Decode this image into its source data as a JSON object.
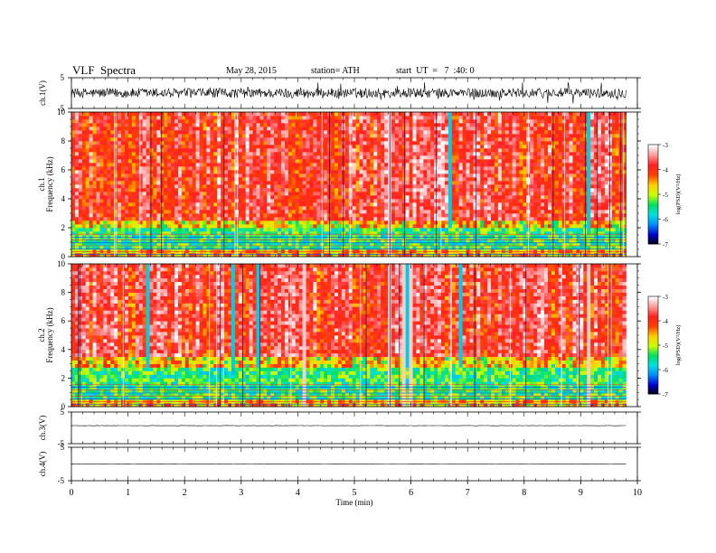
{
  "header": {
    "title": "VLF  Spectra",
    "date": "May 28, 2015",
    "station": "station= ATH",
    "start": "start  UT  =   7  :40: 0"
  },
  "chart_data": {
    "type": "heatmap",
    "xlabel": "Time  (min)",
    "xlim": [
      0,
      10
    ],
    "x_ticks": [
      "0",
      "1",
      "2",
      "3",
      "4",
      "5",
      "6",
      "7",
      "8",
      "9",
      "10"
    ],
    "data_end_min": 9.8,
    "panels": [
      {
        "id": "ch1-waveform",
        "type": "line",
        "ylabel": "ch.1(V)",
        "ylim": [
          -5,
          5
        ],
        "y_ticks": [
          "5",
          "-5"
        ],
        "amplitude": 1.6
      },
      {
        "id": "ch1-spectrogram",
        "type": "heatmap",
        "ylabel_top": "ch.1",
        "ylabel": "Frequency  (kHz)",
        "ylim": [
          0,
          10
        ],
        "y_ticks": [
          "0",
          "2",
          "4",
          "6",
          "8",
          "10"
        ],
        "noise_floor_kHz": 2.0
      },
      {
        "id": "ch2-spectrogram",
        "type": "heatmap",
        "ylabel_top": "ch.2",
        "ylabel": "Frequency  (kHz)",
        "ylim": [
          0,
          10
        ],
        "y_ticks": [
          "0",
          "2",
          "4",
          "6",
          "8",
          "10"
        ],
        "noise_floor_kHz": 2.8
      },
      {
        "id": "ch3-waveform",
        "type": "line",
        "ylabel": "ch.3(V)",
        "ylim": [
          -5,
          5
        ],
        "y_ticks": [
          "5",
          "-5"
        ],
        "level": 0.7
      },
      {
        "id": "ch4-waveform",
        "type": "line",
        "ylabel": "ch.4(V)",
        "ylim": [
          -5,
          5
        ],
        "y_ticks": [
          "5",
          "-5"
        ],
        "level": 0.0
      }
    ],
    "colorbar": {
      "label": "log(PSD)(V²/Hz)",
      "range": [
        -7,
        -3
      ],
      "ticks": [
        "-3",
        "-4",
        "-5",
        "-6",
        "-7"
      ],
      "colors": [
        "#000000",
        "#0000cc",
        "#0088ff",
        "#00e0e0",
        "#00e060",
        "#c8ff00",
        "#ffd000",
        "#ff4000",
        "#ff2020",
        "#ff9898",
        "#ffffff"
      ]
    }
  }
}
